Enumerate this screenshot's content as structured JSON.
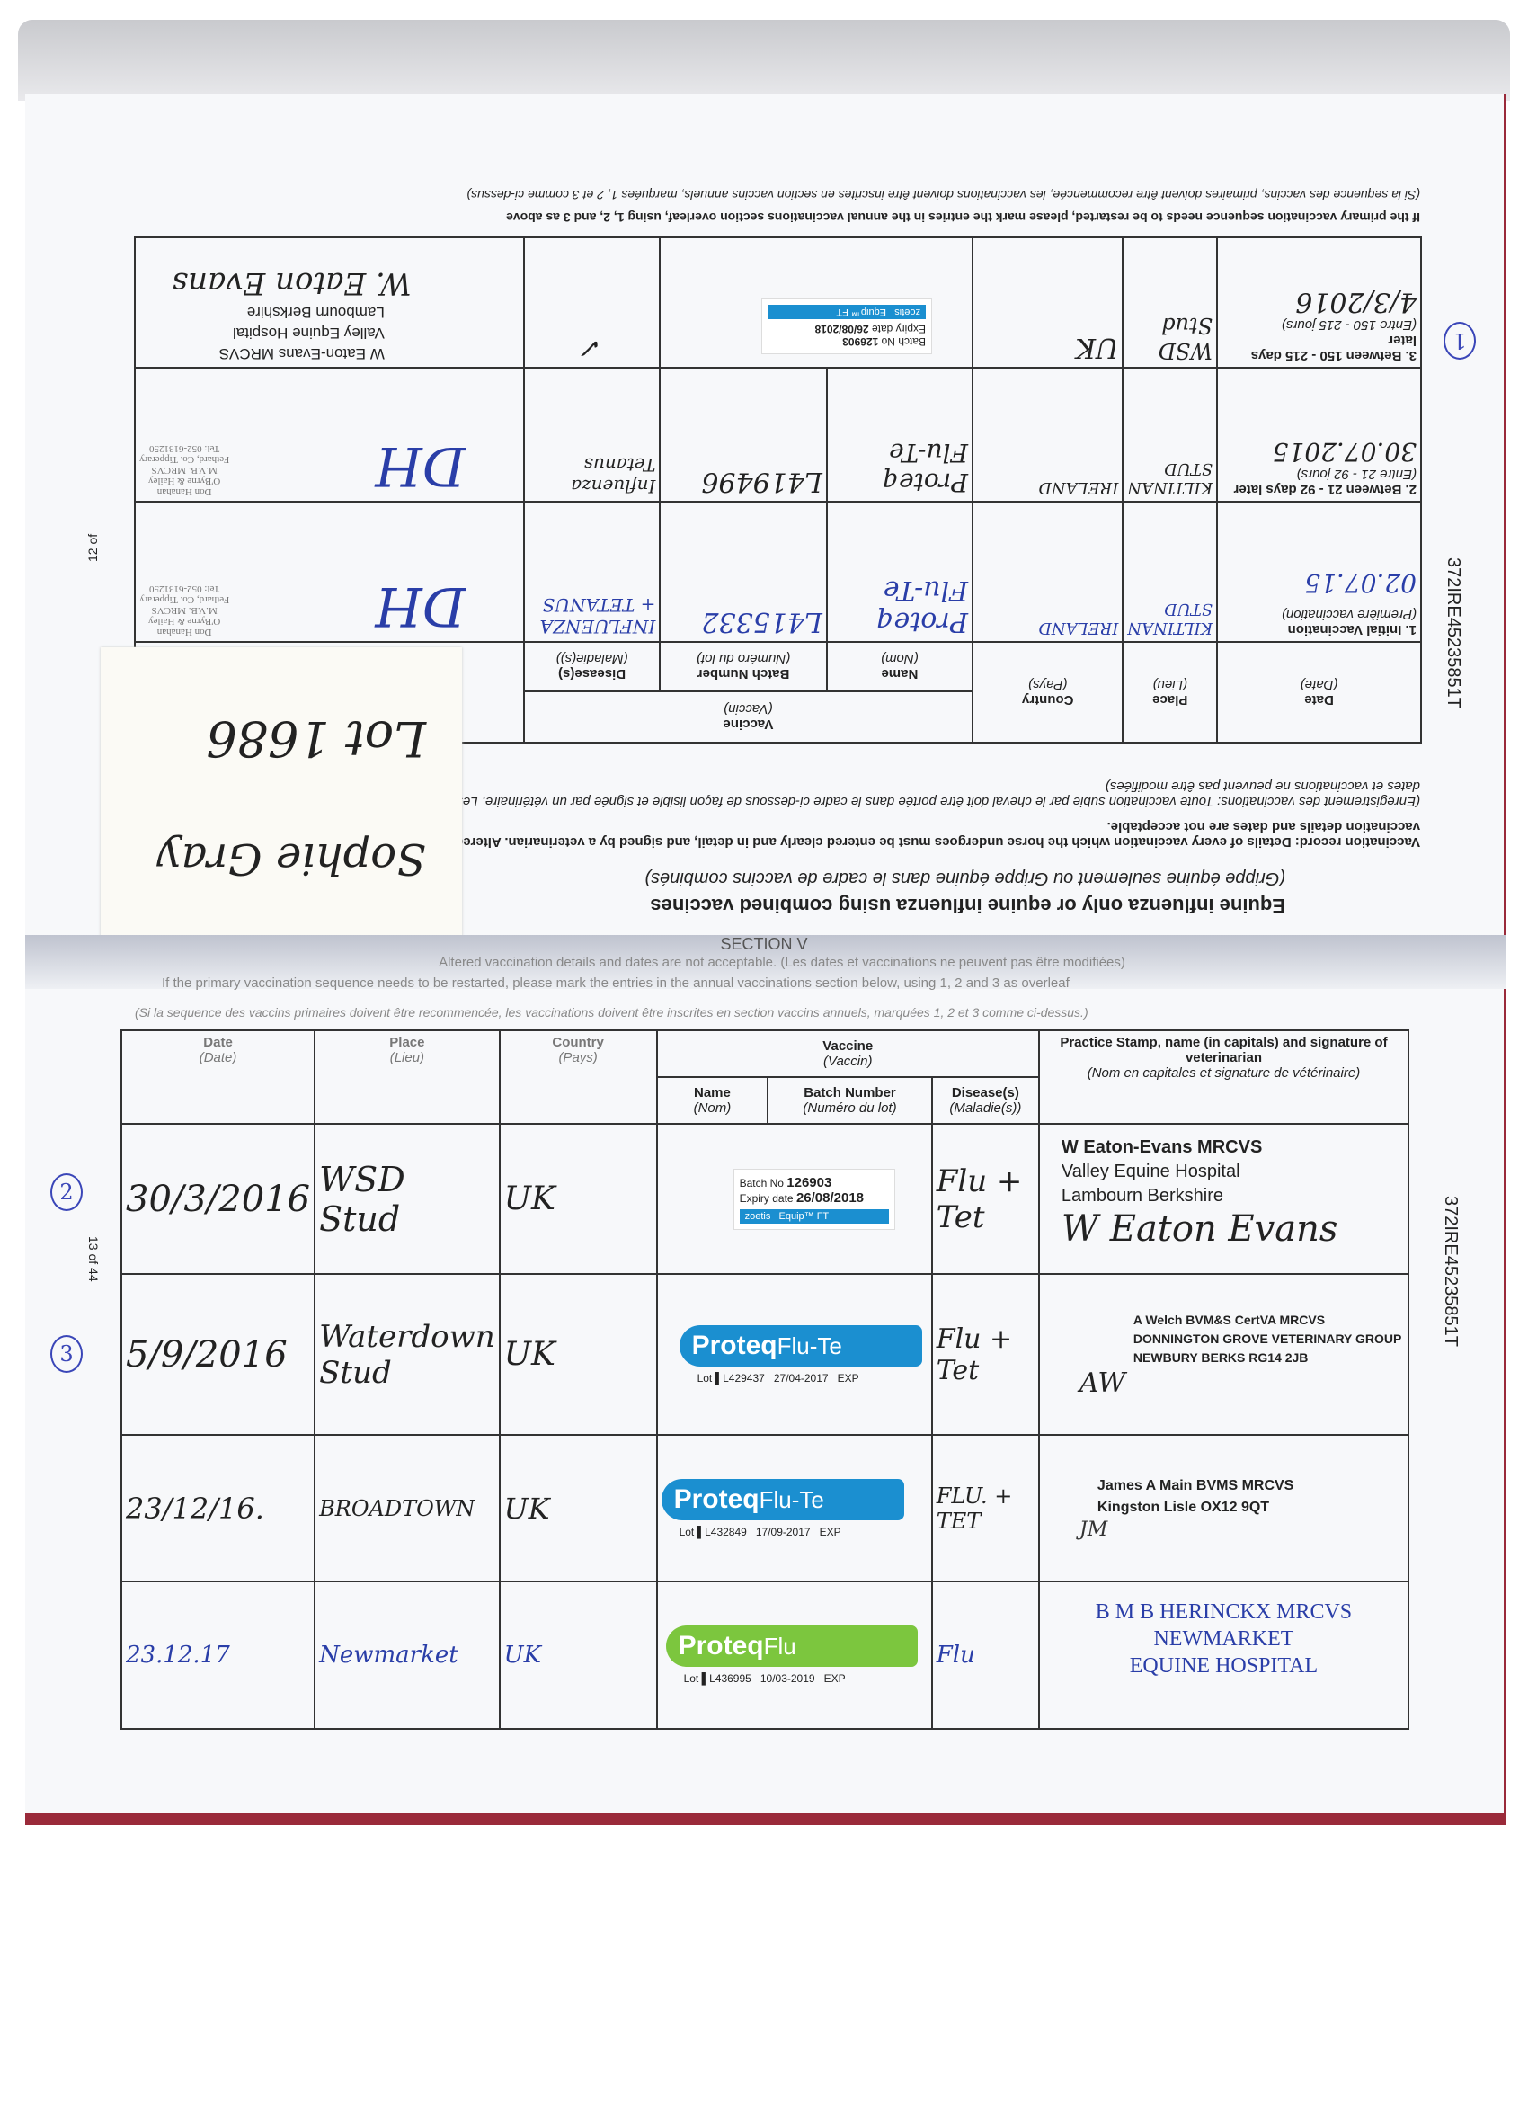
{
  "side_id": "372IRE45235851T",
  "upper_page": {
    "page_number": "12 of",
    "section_title": "Equine influenza only or equine influenza using combined vaccines",
    "section_title_fr": "(Grippe équine seulement ou Grippe équine dans le cadre de vaccins combinés)",
    "record_text": "Vaccination record: Details of every vaccination which the horse undergoes must be entered clearly and in detail, and signed by a veterinarian. Altered vaccination details and dates are not acceptable.",
    "record_text_fr": "(Enregistrement des vaccinations: Toute vaccination subie par le cheval doit être portée dans le cadre ci-dessous de façon lisible et signée par un vétérinaire. Les dates et vaccinations ne peuvent pas être modifiées)",
    "headers": {
      "date": "Date",
      "date_fr": "(Date)",
      "place": "Place",
      "place_fr": "(Lieu)",
      "country": "Country",
      "country_fr": "(Pays)",
      "vaccine": "Vaccine",
      "vaccine_fr": "(Vaccin)",
      "name": "Name",
      "name_fr": "(Nom)",
      "batch": "Batch Number",
      "batch_fr": "(Numéro du lot)",
      "disease": "Disease(s)",
      "disease_fr": "(Maladie(s))",
      "practice": "Pr"
    },
    "rows": [
      {
        "label": "1. Initial Vaccination",
        "label_fr": "(Première vaccination)",
        "date": "02.07.15",
        "place": "KILTINAN STUD",
        "country": "IRELAND",
        "name": "Proteq Flu-Te",
        "batch": "L415332",
        "disease": "INFLUENZA + TETANUS",
        "stamp": [
          "Don Hanahan",
          "O'Byrne & Hailey",
          "M.V.B. MRCVS",
          "Fethard, Co. Tipperary",
          "Tel: 052-6131250"
        ],
        "signature": "DH"
      },
      {
        "label": "2. Between 21 - 92 days later",
        "label_fr": "(Entre 21 - 92 jours)",
        "date": "30.07.2015",
        "place": "KILTINAN STUD",
        "country": "IRELAND",
        "name": "Proteq Flu-Te",
        "batch": "L419496",
        "disease": "Influenza Tetanus",
        "stamp": [
          "Don Hanahan",
          "O'Byrne & Hailey",
          "M.V.B. MRCVS",
          "Fethard, Co. Tipperary",
          "Tel: 052-6131250"
        ],
        "signature": "DH"
      },
      {
        "label": "3. Between 150 - 215 days later",
        "label_fr": "(Entre 150 - 215 jours)",
        "date": "4/3/2016",
        "place": "WSD Stud",
        "country": "UK",
        "name": "",
        "batch_label": {
          "batch_no_label": "Batch No",
          "batch_no": "126903",
          "expiry_label": "Expiry date",
          "expiry": "26/08/2018",
          "brand": "zoetis",
          "product": "Equip™ FT"
        },
        "disease": "✓",
        "stamp": [
          "W Eaton-Evans MRCVS",
          "Valley Equine Hospital",
          "Lambourn Berkshire"
        ],
        "signature": "W. Eaton Evans"
      }
    ],
    "footnote": "If the primary vaccination sequence needs to be restarted, please mark the entries in the annual vaccinations section overleaf, using 1, 2, and 3 as above",
    "footnote_fr": "(Si la sequence des vaccins, primaires doivent être recommencée, les vaccinations doivent être inscrites en section vaccins annuels, marquées 1, 2 et 3 comme ci-dessus)",
    "circle_mark": "1",
    "sticky_note": {
      "line1": "Sophie Gray",
      "line2": "Lot 1686"
    }
  },
  "lower_page": {
    "page_number": "13 of 44",
    "section_label": "SECTION V",
    "note1": "Altered vaccination details and dates are not acceptable. (Les dates et vaccinations ne peuvent pas être modifiées)",
    "note2": "If the primary vaccination sequence needs to be restarted, please mark the entries in the annual vaccinations section below, using 1, 2 and 3 as overleaf",
    "note3": "(Si la sequence des vaccins primaires doivent être recommencée, les vaccinations doivent être inscrites en section vaccins annuels, marquées 1, 2 et 3 comme ci-dessus.)",
    "headers": {
      "date": "Date",
      "date_fr": "(Date)",
      "place": "Place",
      "place_fr": "(Lieu)",
      "country": "Country",
      "country_fr": "(Pays)",
      "vaccine": "Vaccine",
      "vaccine_fr": "(Vaccin)",
      "name": "Name",
      "name_fr": "(Nom)",
      "batch": "Batch Number",
      "batch_fr": "(Numéro du lot)",
      "disease": "Disease(s)",
      "disease_fr": "(Maladie(s))",
      "practice": "Practice Stamp, name (in capitals) and signature of veterinarian",
      "practice_fr": "(Nom en capitales et signature de vétérinaire)"
    },
    "rows": [
      {
        "mark": "2",
        "date": "30/3/2016",
        "place": "WSD Stud",
        "country": "UK",
        "label": {
          "type": "equip",
          "batch_no_label": "Batch No",
          "batch_no": "126903",
          "expiry_label": "Expiry date",
          "expiry": "26/08/2018",
          "brand": "zoetis",
          "product": "Equip™ FT"
        },
        "disease": "Flu + Tet",
        "stamp": [
          "W Eaton-Evans MRCVS",
          "Valley Equine Hospital",
          "Lambourn Berkshire"
        ],
        "signature": "W Eaton Evans"
      },
      {
        "mark": "3",
        "date": "5/9/2016",
        "place": "Waterdown Stud",
        "country": "UK",
        "label": {
          "type": "proteq",
          "brand": "Proteq",
          "product": "Flu-Te",
          "lot_label": "Lot",
          "lot": "L429437",
          "expiry": "27/04-2017",
          "exp_label": "EXP",
          "color": "#1b8fd0"
        },
        "disease": "Flu + Tet",
        "stamp": [
          "A Welch BVM&S CertVA MRCVS",
          "DONNINGTON GROVE VETERINARY GROUP",
          "NEWBURY BERKS RG14 2JB"
        ],
        "signature": "AW"
      },
      {
        "mark": "",
        "date": "23/12/16.",
        "place": "BROADTOWN",
        "country": "UK",
        "label": {
          "type": "proteq",
          "brand": "Proteq",
          "product": "Flu-Te",
          "lot_label": "Lot",
          "lot": "L432849",
          "expiry": "17/09-2017",
          "exp_label": "EXP",
          "color": "#1b8fd0"
        },
        "disease": "FLU. + TET",
        "stamp": [
          "James A Main BVMS MRCVS",
          "Kingston Lisle OX12 9QT"
        ],
        "signature": "JM"
      },
      {
        "mark": "",
        "date": "23.12.17",
        "place": "Newmarket",
        "country": "UK",
        "label": {
          "type": "proteq",
          "brand": "Proteq",
          "product": "Flu",
          "lot_label": "Lot",
          "lot": "L436995",
          "expiry": "10/03-2019",
          "exp_label": "EXP",
          "color": "#7cc63e"
        },
        "disease": "Flu",
        "stamp": [
          "B M B HERINCKX MRCVS",
          "NEWMARKET",
          "EQUINE HOSPITAL"
        ],
        "signature": ""
      }
    ]
  }
}
